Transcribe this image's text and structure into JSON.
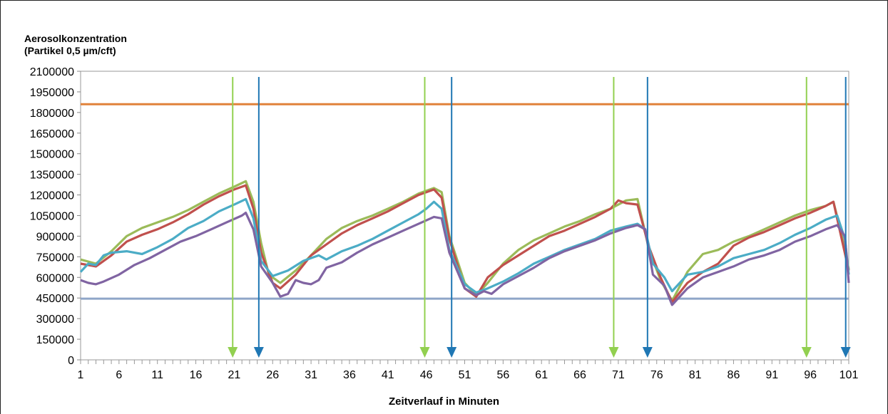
{
  "chart_data": {
    "type": "line",
    "ylabel_line1": "Aerosolkonzentration",
    "ylabel_line2": "(Partikel 0,5 µm/cft)",
    "xlabel": "Zeitverlauf in Minuten",
    "ylim": [
      0,
      2100000
    ],
    "xlim": [
      1,
      101
    ],
    "y_ticks": [
      "2100000",
      "1950000",
      "1800000",
      "1650000",
      "1500000",
      "1350000",
      "1200000",
      "1050000",
      "900000",
      "750000",
      "600000",
      "450000",
      "300000",
      "150000",
      "0"
    ],
    "y_tick_values": [
      2100000,
      1950000,
      1800000,
      1650000,
      1500000,
      1350000,
      1200000,
      1050000,
      900000,
      750000,
      600000,
      450000,
      300000,
      150000,
      0
    ],
    "x_ticks": [
      "1",
      "6",
      "11",
      "16",
      "21",
      "26",
      "31",
      "36",
      "41",
      "46",
      "51",
      "56",
      "61",
      "66",
      "71",
      "76",
      "81",
      "86",
      "91",
      "96",
      "101"
    ],
    "x_tick_values": [
      1,
      6,
      11,
      16,
      21,
      26,
      31,
      36,
      41,
      46,
      51,
      56,
      61,
      66,
      71,
      76,
      81,
      86,
      91,
      96,
      101
    ],
    "grid": false,
    "legend": false,
    "hlines": [
      {
        "y": 1860000,
        "color": "#e0823a"
      },
      {
        "y": 445000,
        "color": "#8fa6c8"
      }
    ],
    "vlines": [
      {
        "x": 20.8,
        "color": "#92d050"
      },
      {
        "x": 24.2,
        "color": "#1f77b4"
      },
      {
        "x": 45.8,
        "color": "#92d050"
      },
      {
        "x": 49.3,
        "color": "#1f77b4"
      },
      {
        "x": 70.4,
        "color": "#92d050"
      },
      {
        "x": 74.8,
        "color": "#1f77b4"
      },
      {
        "x": 95.5,
        "color": "#92d050"
      },
      {
        "x": 100.6,
        "color": "#1f77b4"
      }
    ],
    "series": [
      {
        "color": "#9bbb59",
        "points": [
          [
            1,
            730000
          ],
          [
            3,
            700000
          ],
          [
            5,
            790000
          ],
          [
            7,
            900000
          ],
          [
            9,
            960000
          ],
          [
            11,
            1000000
          ],
          [
            13,
            1040000
          ],
          [
            15,
            1090000
          ],
          [
            17,
            1150000
          ],
          [
            19,
            1210000
          ],
          [
            21,
            1260000
          ],
          [
            22.5,
            1300000
          ],
          [
            23.5,
            1150000
          ],
          [
            24.5,
            850000
          ],
          [
            25.5,
            620000
          ],
          [
            27,
            560000
          ],
          [
            29,
            650000
          ],
          [
            31,
            760000
          ],
          [
            33,
            880000
          ],
          [
            35,
            960000
          ],
          [
            37,
            1010000
          ],
          [
            39,
            1050000
          ],
          [
            41,
            1100000
          ],
          [
            43,
            1150000
          ],
          [
            45,
            1210000
          ],
          [
            47,
            1250000
          ],
          [
            48,
            1220000
          ],
          [
            49,
            900000
          ],
          [
            51,
            560000
          ],
          [
            52.5,
            470000
          ],
          [
            54,
            560000
          ],
          [
            56,
            700000
          ],
          [
            58,
            800000
          ],
          [
            60,
            870000
          ],
          [
            62,
            920000
          ],
          [
            64,
            970000
          ],
          [
            66,
            1010000
          ],
          [
            68,
            1060000
          ],
          [
            70,
            1100000
          ],
          [
            72,
            1160000
          ],
          [
            73.5,
            1170000
          ],
          [
            75,
            800000
          ],
          [
            76.5,
            580000
          ],
          [
            78,
            430000
          ],
          [
            80,
            640000
          ],
          [
            82,
            770000
          ],
          [
            84,
            800000
          ],
          [
            86,
            860000
          ],
          [
            88,
            900000
          ],
          [
            90,
            950000
          ],
          [
            92,
            1000000
          ],
          [
            94,
            1050000
          ],
          [
            96,
            1090000
          ],
          [
            98,
            1120000
          ],
          [
            99,
            1150000
          ],
          [
            100,
            930000
          ],
          [
            101,
            660000
          ]
        ]
      },
      {
        "color": "#c0504d",
        "points": [
          [
            1,
            700000
          ],
          [
            3,
            680000
          ],
          [
            5,
            760000
          ],
          [
            7,
            860000
          ],
          [
            9,
            910000
          ],
          [
            11,
            950000
          ],
          [
            13,
            1000000
          ],
          [
            15,
            1060000
          ],
          [
            17,
            1130000
          ],
          [
            19,
            1190000
          ],
          [
            21,
            1240000
          ],
          [
            22.5,
            1270000
          ],
          [
            23.5,
            1100000
          ],
          [
            24.5,
            780000
          ],
          [
            26,
            560000
          ],
          [
            27,
            520000
          ],
          [
            29,
            620000
          ],
          [
            31,
            760000
          ],
          [
            33,
            840000
          ],
          [
            35,
            920000
          ],
          [
            37,
            980000
          ],
          [
            39,
            1030000
          ],
          [
            41,
            1080000
          ],
          [
            43,
            1140000
          ],
          [
            45,
            1200000
          ],
          [
            47,
            1240000
          ],
          [
            48,
            1180000
          ],
          [
            49,
            880000
          ],
          [
            51,
            520000
          ],
          [
            52.5,
            460000
          ],
          [
            54,
            600000
          ],
          [
            56,
            690000
          ],
          [
            58,
            760000
          ],
          [
            60,
            830000
          ],
          [
            62,
            900000
          ],
          [
            64,
            940000
          ],
          [
            66,
            990000
          ],
          [
            68,
            1040000
          ],
          [
            70,
            1100000
          ],
          [
            71,
            1160000
          ],
          [
            72,
            1140000
          ],
          [
            73.5,
            1130000
          ],
          [
            75,
            820000
          ],
          [
            76.5,
            600000
          ],
          [
            78,
            420000
          ],
          [
            80,
            560000
          ],
          [
            82,
            640000
          ],
          [
            84,
            700000
          ],
          [
            86,
            830000
          ],
          [
            88,
            890000
          ],
          [
            90,
            930000
          ],
          [
            92,
            980000
          ],
          [
            94,
            1030000
          ],
          [
            96,
            1070000
          ],
          [
            98,
            1120000
          ],
          [
            99,
            1150000
          ],
          [
            100,
            900000
          ],
          [
            101,
            650000
          ]
        ]
      },
      {
        "color": "#4bacc6",
        "points": [
          [
            1,
            640000
          ],
          [
            2,
            700000
          ],
          [
            3,
            690000
          ],
          [
            4,
            760000
          ],
          [
            5,
            780000
          ],
          [
            7,
            790000
          ],
          [
            9,
            770000
          ],
          [
            11,
            820000
          ],
          [
            13,
            880000
          ],
          [
            15,
            960000
          ],
          [
            17,
            1010000
          ],
          [
            19,
            1080000
          ],
          [
            21,
            1130000
          ],
          [
            22.5,
            1170000
          ],
          [
            23.5,
            1030000
          ],
          [
            24.5,
            720000
          ],
          [
            26,
            610000
          ],
          [
            28,
            650000
          ],
          [
            30,
            720000
          ],
          [
            32,
            760000
          ],
          [
            33,
            730000
          ],
          [
            35,
            790000
          ],
          [
            37,
            830000
          ],
          [
            39,
            880000
          ],
          [
            41,
            940000
          ],
          [
            43,
            1000000
          ],
          [
            45,
            1060000
          ],
          [
            46,
            1100000
          ],
          [
            47,
            1150000
          ],
          [
            48,
            1100000
          ],
          [
            49,
            800000
          ],
          [
            51,
            550000
          ],
          [
            52.5,
            490000
          ],
          [
            54,
            520000
          ],
          [
            56,
            570000
          ],
          [
            58,
            630000
          ],
          [
            60,
            700000
          ],
          [
            62,
            750000
          ],
          [
            64,
            800000
          ],
          [
            66,
            840000
          ],
          [
            68,
            880000
          ],
          [
            70,
            940000
          ],
          [
            72,
            970000
          ],
          [
            73.5,
            990000
          ],
          [
            74.5,
            950000
          ],
          [
            75.5,
            700000
          ],
          [
            77,
            600000
          ],
          [
            78,
            500000
          ],
          [
            80,
            620000
          ],
          [
            82,
            640000
          ],
          [
            84,
            680000
          ],
          [
            86,
            740000
          ],
          [
            88,
            770000
          ],
          [
            90,
            800000
          ],
          [
            92,
            850000
          ],
          [
            94,
            910000
          ],
          [
            96,
            960000
          ],
          [
            98,
            1020000
          ],
          [
            99.5,
            1050000
          ],
          [
            100.5,
            880000
          ],
          [
            101,
            620000
          ]
        ]
      },
      {
        "color": "#8064a2",
        "points": [
          [
            1,
            580000
          ],
          [
            2,
            560000
          ],
          [
            3,
            550000
          ],
          [
            4,
            570000
          ],
          [
            6,
            620000
          ],
          [
            8,
            690000
          ],
          [
            10,
            740000
          ],
          [
            12,
            800000
          ],
          [
            14,
            860000
          ],
          [
            16,
            900000
          ],
          [
            18,
            950000
          ],
          [
            20,
            1000000
          ],
          [
            22,
            1050000
          ],
          [
            22.5,
            1070000
          ],
          [
            23.5,
            950000
          ],
          [
            24.5,
            680000
          ],
          [
            26,
            560000
          ],
          [
            27,
            460000
          ],
          [
            28,
            480000
          ],
          [
            29,
            580000
          ],
          [
            30,
            560000
          ],
          [
            31,
            550000
          ],
          [
            32,
            580000
          ],
          [
            33,
            670000
          ],
          [
            35,
            710000
          ],
          [
            37,
            780000
          ],
          [
            39,
            840000
          ],
          [
            41,
            890000
          ],
          [
            43,
            940000
          ],
          [
            45,
            990000
          ],
          [
            47,
            1040000
          ],
          [
            48,
            1030000
          ],
          [
            49,
            780000
          ],
          [
            51,
            520000
          ],
          [
            52.5,
            470000
          ],
          [
            53.5,
            500000
          ],
          [
            54.5,
            480000
          ],
          [
            56,
            550000
          ],
          [
            58,
            610000
          ],
          [
            60,
            670000
          ],
          [
            62,
            740000
          ],
          [
            64,
            790000
          ],
          [
            66,
            830000
          ],
          [
            68,
            870000
          ],
          [
            70,
            920000
          ],
          [
            72,
            960000
          ],
          [
            73.5,
            980000
          ],
          [
            74.5,
            950000
          ],
          [
            75.5,
            620000
          ],
          [
            77,
            540000
          ],
          [
            78,
            400000
          ],
          [
            80,
            520000
          ],
          [
            82,
            600000
          ],
          [
            84,
            640000
          ],
          [
            86,
            680000
          ],
          [
            88,
            730000
          ],
          [
            90,
            760000
          ],
          [
            92,
            800000
          ],
          [
            94,
            860000
          ],
          [
            96,
            900000
          ],
          [
            98,
            950000
          ],
          [
            99.5,
            980000
          ],
          [
            100.5,
            900000
          ],
          [
            101,
            560000
          ]
        ]
      }
    ]
  }
}
